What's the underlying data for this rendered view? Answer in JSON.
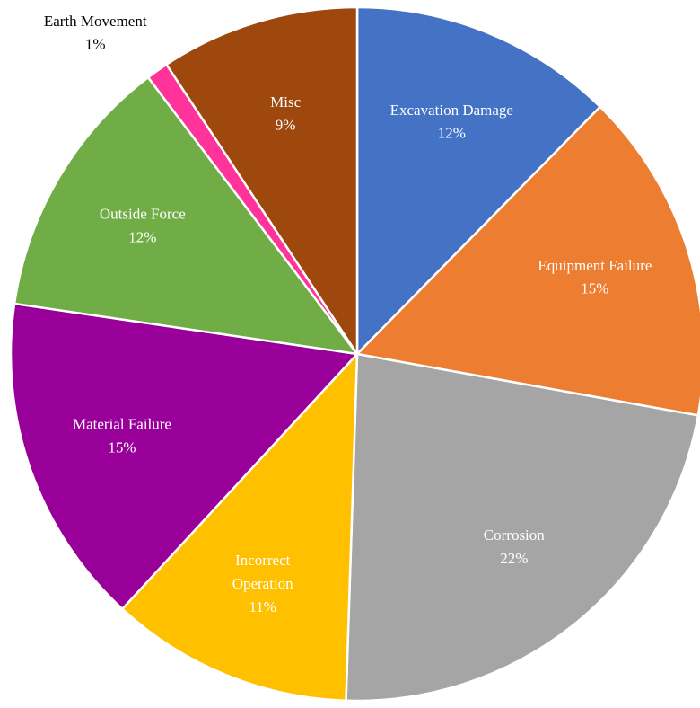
{
  "chart_data": {
    "type": "pie",
    "categories": [
      "Excavation Damage",
      "Equipment Failure",
      "Corrosion",
      "Incorrect Operation",
      "Material Failure",
      "Outside Force",
      "Earth Movement",
      "Misc"
    ],
    "values": [
      12,
      15,
      22,
      11,
      15,
      12,
      1,
      9
    ],
    "value_labels": [
      "12%",
      "15%",
      "22%",
      "11%",
      "15%",
      "12%",
      "1%",
      "9%"
    ],
    "colors": [
      "#4472c4",
      "#ed7d31",
      "#a5a5a5",
      "#ffc000",
      "#990099",
      "#70ad47",
      "#ff3399",
      "#9e480e"
    ]
  }
}
